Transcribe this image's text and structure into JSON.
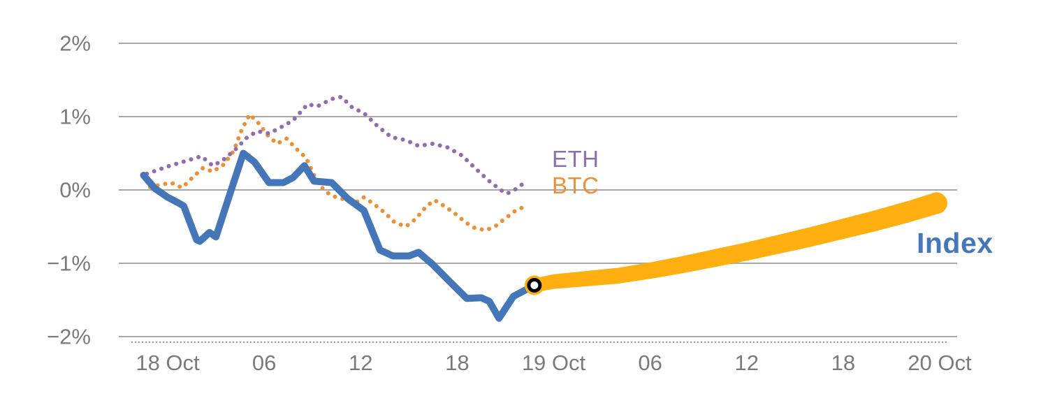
{
  "colors": {
    "index": "#4577b8",
    "btc": "#e8913a",
    "eth": "#8e6fad",
    "forecast": "#ffaf0f",
    "grid": "#a8a8a8",
    "axis_text": "#7a7a7a",
    "baseline": "#999999",
    "marker_ring": "#000000",
    "marker_center": "#ffffff"
  },
  "chart_data": {
    "type": "line",
    "title": "",
    "xlabel": "",
    "ylabel": "",
    "x_axis": {
      "unit": "hours-from-18-Oct-00:00",
      "domain": [
        -3,
        49.3
      ],
      "ticks": [
        {
          "pos": 0,
          "label": "18 Oct"
        },
        {
          "pos": 6,
          "label": "06"
        },
        {
          "pos": 12,
          "label": "12"
        },
        {
          "pos": 18,
          "label": "18"
        },
        {
          "pos": 24,
          "label": "19 Oct"
        },
        {
          "pos": 30,
          "label": "06"
        },
        {
          "pos": 36,
          "label": "12"
        },
        {
          "pos": 42,
          "label": "18"
        },
        {
          "pos": 48,
          "label": "20 Oct"
        }
      ]
    },
    "y_axis": {
      "unit": "%",
      "domain": [
        -2,
        2
      ],
      "ticks": [
        {
          "pos": 2,
          "label": "2%"
        },
        {
          "pos": 1,
          "label": "1%"
        },
        {
          "pos": 0,
          "label": "0%"
        },
        {
          "pos": -1,
          "label": "−1%"
        },
        {
          "pos": -2,
          "label": "−2%"
        }
      ]
    },
    "grid": "horizontal",
    "legend_position": "inline-end-of-line",
    "series": [
      {
        "name": "ETH",
        "style": "dotted",
        "color_key": "eth",
        "points": [
          [
            -1.3,
            0.22
          ],
          [
            0.0,
            0.32
          ],
          [
            1.2,
            0.4
          ],
          [
            2.1,
            0.46
          ],
          [
            2.8,
            0.33
          ],
          [
            3.4,
            0.4
          ],
          [
            4.2,
            0.55
          ],
          [
            5.0,
            0.73
          ],
          [
            5.6,
            0.8
          ],
          [
            6.3,
            0.77
          ],
          [
            7.0,
            0.85
          ],
          [
            7.8,
            0.95
          ],
          [
            8.7,
            1.17
          ],
          [
            9.3,
            1.14
          ],
          [
            10.2,
            1.24
          ],
          [
            10.8,
            1.27
          ],
          [
            11.5,
            1.12
          ],
          [
            12.2,
            1.05
          ],
          [
            13.0,
            0.88
          ],
          [
            13.9,
            0.72
          ],
          [
            14.8,
            0.68
          ],
          [
            15.6,
            0.6
          ],
          [
            16.5,
            0.63
          ],
          [
            17.4,
            0.58
          ],
          [
            18.3,
            0.47
          ],
          [
            19.1,
            0.3
          ],
          [
            20.0,
            0.12
          ],
          [
            20.7,
            0.0
          ],
          [
            21.1,
            -0.05
          ],
          [
            21.8,
            0.03
          ],
          [
            22.3,
            0.13
          ]
        ]
      },
      {
        "name": "BTC",
        "style": "dotted",
        "color_key": "btc",
        "points": [
          [
            -1.1,
            0.04
          ],
          [
            0.2,
            0.1
          ],
          [
            0.9,
            0.03
          ],
          [
            1.5,
            0.16
          ],
          [
            2.2,
            0.3
          ],
          [
            2.8,
            0.25
          ],
          [
            3.5,
            0.35
          ],
          [
            4.1,
            0.53
          ],
          [
            4.6,
            0.82
          ],
          [
            5.1,
            1.03
          ],
          [
            5.7,
            0.9
          ],
          [
            6.2,
            0.75
          ],
          [
            6.8,
            0.63
          ],
          [
            7.4,
            0.7
          ],
          [
            8.0,
            0.56
          ],
          [
            8.6,
            0.44
          ],
          [
            9.1,
            0.2
          ],
          [
            9.7,
            0.0
          ],
          [
            10.2,
            -0.08
          ],
          [
            11.0,
            -0.13
          ],
          [
            11.7,
            -0.17
          ],
          [
            12.2,
            -0.1
          ],
          [
            12.8,
            -0.19
          ],
          [
            13.5,
            -0.31
          ],
          [
            14.1,
            -0.44
          ],
          [
            14.8,
            -0.5
          ],
          [
            15.4,
            -0.4
          ],
          [
            16.1,
            -0.22
          ],
          [
            16.6,
            -0.14
          ],
          [
            17.2,
            -0.22
          ],
          [
            17.8,
            -0.31
          ],
          [
            18.5,
            -0.44
          ],
          [
            19.1,
            -0.52
          ],
          [
            19.8,
            -0.55
          ],
          [
            20.4,
            -0.49
          ],
          [
            21.1,
            -0.37
          ],
          [
            21.7,
            -0.27
          ],
          [
            22.3,
            -0.22
          ]
        ]
      },
      {
        "name": "Index",
        "style": "solid",
        "color_key": "index",
        "points": [
          [
            -1.5,
            0.2
          ],
          [
            -0.8,
            0.02
          ],
          [
            0.0,
            -0.1
          ],
          [
            0.7,
            -0.18
          ],
          [
            1.0,
            -0.22
          ],
          [
            1.8,
            -0.68
          ],
          [
            2.0,
            -0.7
          ],
          [
            2.6,
            -0.58
          ],
          [
            3.0,
            -0.64
          ],
          [
            3.8,
            -0.1
          ],
          [
            4.7,
            0.5
          ],
          [
            5.4,
            0.38
          ],
          [
            6.3,
            0.1
          ],
          [
            7.2,
            0.1
          ],
          [
            7.8,
            0.17
          ],
          [
            8.5,
            0.33
          ],
          [
            9.1,
            0.12
          ],
          [
            10.2,
            0.1
          ],
          [
            11.2,
            -0.12
          ],
          [
            12.2,
            -0.28
          ],
          [
            13.2,
            -0.82
          ],
          [
            14.0,
            -0.9
          ],
          [
            15.0,
            -0.9
          ],
          [
            15.6,
            -0.85
          ],
          [
            16.5,
            -1.02
          ],
          [
            17.4,
            -1.22
          ],
          [
            18.6,
            -1.48
          ],
          [
            19.5,
            -1.47
          ],
          [
            20.0,
            -1.52
          ],
          [
            20.6,
            -1.75
          ],
          [
            21.5,
            -1.45
          ],
          [
            22.8,
            -1.3
          ]
        ]
      },
      {
        "name": "Index forecast",
        "style": "band",
        "color_key": "forecast",
        "points": [
          [
            22.8,
            -1.3
          ],
          [
            24.0,
            -1.25
          ],
          [
            26.0,
            -1.21
          ],
          [
            28.0,
            -1.17
          ],
          [
            30.0,
            -1.1
          ],
          [
            32.0,
            -1.02
          ],
          [
            34.0,
            -0.93
          ],
          [
            36.0,
            -0.84
          ],
          [
            38.0,
            -0.74
          ],
          [
            40.0,
            -0.64
          ],
          [
            42.0,
            -0.53
          ],
          [
            44.0,
            -0.42
          ],
          [
            46.0,
            -0.3
          ],
          [
            47.8,
            -0.18
          ]
        ]
      }
    ],
    "marker": {
      "x": 22.8,
      "y": -1.3,
      "meaning": "current value / forecast start"
    }
  },
  "labels": {
    "eth": "ETH",
    "btc": "BTC",
    "index": "Index"
  }
}
